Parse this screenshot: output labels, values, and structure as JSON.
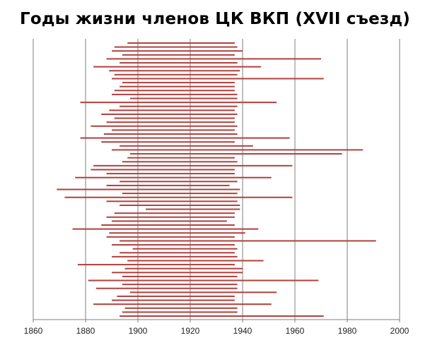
{
  "chart_data": {
    "type": "bar",
    "orientation": "horizontal-range",
    "title": "Годы жизни членов ЦК ВКП (XVII съезд)",
    "xlabel": "",
    "ylabel": "",
    "xlim": [
      1860,
      2000
    ],
    "x_ticks": [
      "1860",
      "1880",
      "1900",
      "1920",
      "1940",
      "1960",
      "1980",
      "2000"
    ],
    "grid": "vertical",
    "legend": "none",
    "bar_color": "#b0413e",
    "grid_color": "#7f7f7f",
    "series": [
      {
        "start": [
          1896,
          1891,
          1890,
          1894,
          1888,
          1893,
          1883,
          1889,
          1891,
          1890,
          1894,
          1893,
          1891,
          1890,
          1897,
          1878,
          1893,
          1889,
          1886,
          1891,
          1888,
          1882,
          1890,
          1887,
          1878,
          1886,
          1893,
          1890,
          1897,
          1896,
          1894,
          1883,
          1882,
          1888,
          1876,
          1893,
          1888,
          1869,
          1894,
          1872,
          1888,
          1893,
          1903,
          1891,
          1888,
          1890,
          1886,
          1875,
          1889,
          1888,
          1893,
          1890,
          1898,
          1893,
          1890,
          1896,
          1877,
          1895,
          1890,
          1894,
          1881,
          1894,
          1884,
          1897,
          1892,
          1890,
          1883,
          1895,
          1894,
          1893
        ],
        "end": [
          1937,
          1938,
          1940,
          1937,
          1970,
          1938,
          1947,
          1939,
          1938,
          1971,
          1937,
          1937,
          1937,
          1938,
          1938,
          1953,
          1938,
          1937,
          1938,
          1937,
          1937,
          1938,
          1937,
          1938,
          1958,
          1937,
          1944,
          1986,
          1978,
          1937,
          1938,
          1959,
          1937,
          1937,
          1951,
          1938,
          1935,
          1939,
          1938,
          1959,
          1938,
          1939,
          1939,
          1937,
          1937,
          1934,
          1937,
          1946,
          1941,
          1937,
          1991,
          1937,
          1938,
          1937,
          1938,
          1948,
          1937,
          1940,
          1940,
          1938,
          1969,
          1938,
          1938,
          1953,
          1937,
          1937,
          1951,
          1938,
          1938,
          1971
        ]
      }
    ]
  }
}
